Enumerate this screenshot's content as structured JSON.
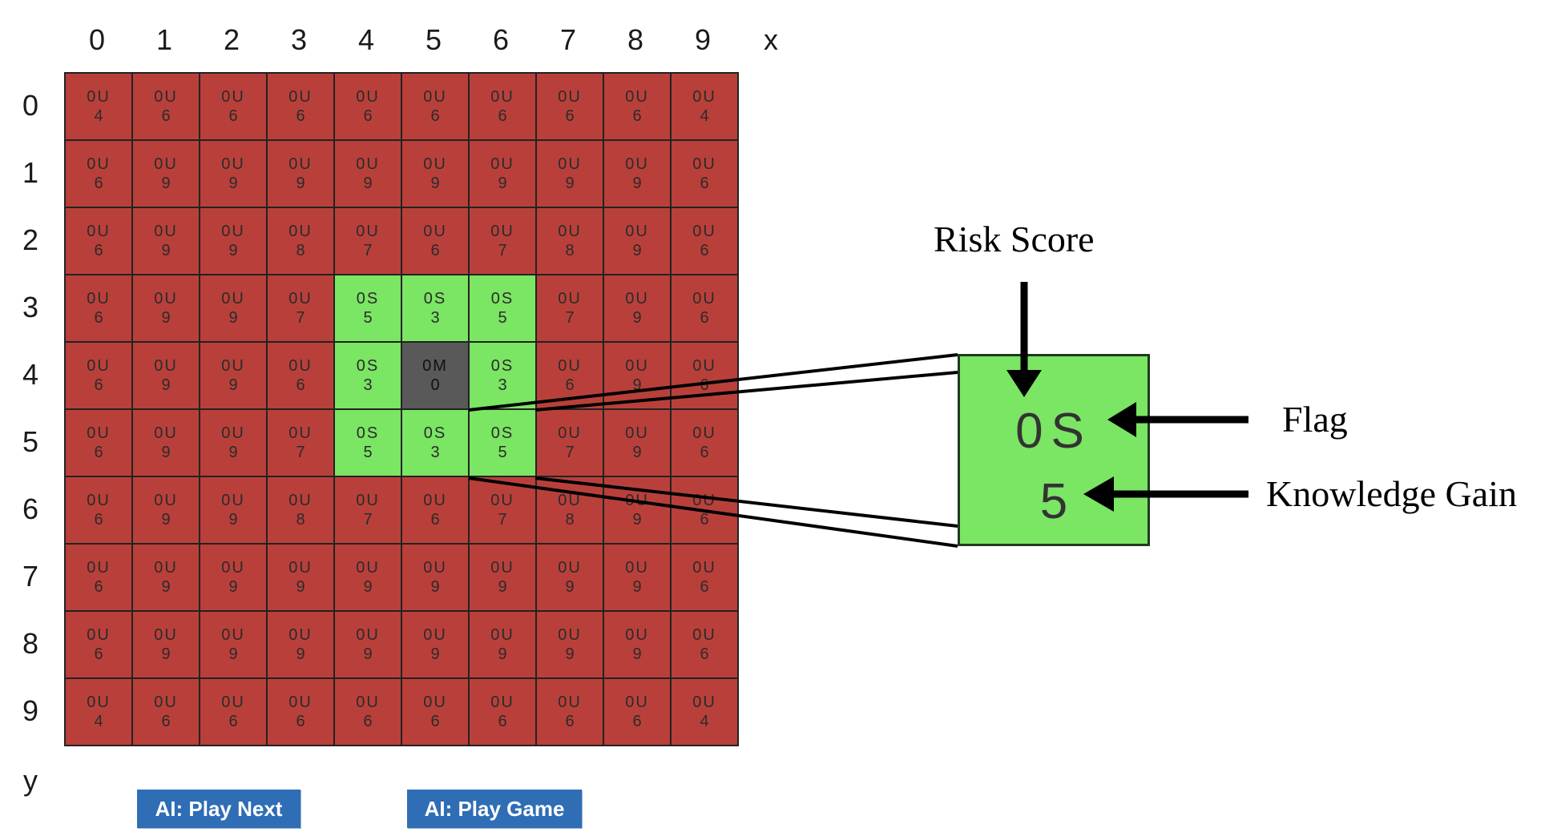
{
  "axes": {
    "x_ticks": [
      "0",
      "1",
      "2",
      "3",
      "4",
      "5",
      "6",
      "7",
      "8",
      "9"
    ],
    "y_ticks": [
      "0",
      "1",
      "2",
      "3",
      "4",
      "5",
      "6",
      "7",
      "8",
      "9"
    ],
    "x_label": "x",
    "y_label": "y"
  },
  "board": {
    "colors": {
      "unsafe": "#b9403a",
      "safe": "#7be564",
      "mine": "#595959"
    },
    "rows": [
      [
        [
          "0U",
          "4"
        ],
        [
          "0U",
          "6"
        ],
        [
          "0U",
          "6"
        ],
        [
          "0U",
          "6"
        ],
        [
          "0U",
          "6"
        ],
        [
          "0U",
          "6"
        ],
        [
          "0U",
          "6"
        ],
        [
          "0U",
          "6"
        ],
        [
          "0U",
          "6"
        ],
        [
          "0U",
          "4"
        ]
      ],
      [
        [
          "0U",
          "6"
        ],
        [
          "0U",
          "9"
        ],
        [
          "0U",
          "9"
        ],
        [
          "0U",
          "9"
        ],
        [
          "0U",
          "9"
        ],
        [
          "0U",
          "9"
        ],
        [
          "0U",
          "9"
        ],
        [
          "0U",
          "9"
        ],
        [
          "0U",
          "9"
        ],
        [
          "0U",
          "6"
        ]
      ],
      [
        [
          "0U",
          "6"
        ],
        [
          "0U",
          "9"
        ],
        [
          "0U",
          "9"
        ],
        [
          "0U",
          "8"
        ],
        [
          "0U",
          "7"
        ],
        [
          "0U",
          "6"
        ],
        [
          "0U",
          "7"
        ],
        [
          "0U",
          "8"
        ],
        [
          "0U",
          "9"
        ],
        [
          "0U",
          "6"
        ]
      ],
      [
        [
          "0U",
          "6"
        ],
        [
          "0U",
          "9"
        ],
        [
          "0U",
          "9"
        ],
        [
          "0U",
          "7"
        ],
        [
          "0S",
          "5"
        ],
        [
          "0S",
          "3"
        ],
        [
          "0S",
          "5"
        ],
        [
          "0U",
          "7"
        ],
        [
          "0U",
          "9"
        ],
        [
          "0U",
          "6"
        ]
      ],
      [
        [
          "0U",
          "6"
        ],
        [
          "0U",
          "9"
        ],
        [
          "0U",
          "9"
        ],
        [
          "0U",
          "6"
        ],
        [
          "0S",
          "3"
        ],
        [
          "0M",
          "0"
        ],
        [
          "0S",
          "3"
        ],
        [
          "0U",
          "6"
        ],
        [
          "0U",
          "9"
        ],
        [
          "0U",
          "6"
        ]
      ],
      [
        [
          "0U",
          "6"
        ],
        [
          "0U",
          "9"
        ],
        [
          "0U",
          "9"
        ],
        [
          "0U",
          "7"
        ],
        [
          "0S",
          "5"
        ],
        [
          "0S",
          "3"
        ],
        [
          "0S",
          "5"
        ],
        [
          "0U",
          "7"
        ],
        [
          "0U",
          "9"
        ],
        [
          "0U",
          "6"
        ]
      ],
      [
        [
          "0U",
          "6"
        ],
        [
          "0U",
          "9"
        ],
        [
          "0U",
          "9"
        ],
        [
          "0U",
          "8"
        ],
        [
          "0U",
          "7"
        ],
        [
          "0U",
          "6"
        ],
        [
          "0U",
          "7"
        ],
        [
          "0U",
          "8"
        ],
        [
          "0U",
          "9"
        ],
        [
          "0U",
          "6"
        ]
      ],
      [
        [
          "0U",
          "6"
        ],
        [
          "0U",
          "9"
        ],
        [
          "0U",
          "9"
        ],
        [
          "0U",
          "9"
        ],
        [
          "0U",
          "9"
        ],
        [
          "0U",
          "9"
        ],
        [
          "0U",
          "9"
        ],
        [
          "0U",
          "9"
        ],
        [
          "0U",
          "9"
        ],
        [
          "0U",
          "6"
        ]
      ],
      [
        [
          "0U",
          "6"
        ],
        [
          "0U",
          "9"
        ],
        [
          "0U",
          "9"
        ],
        [
          "0U",
          "9"
        ],
        [
          "0U",
          "9"
        ],
        [
          "0U",
          "9"
        ],
        [
          "0U",
          "9"
        ],
        [
          "0U",
          "9"
        ],
        [
          "0U",
          "9"
        ],
        [
          "0U",
          "6"
        ]
      ],
      [
        [
          "0U",
          "4"
        ],
        [
          "0U",
          "6"
        ],
        [
          "0U",
          "6"
        ],
        [
          "0U",
          "6"
        ],
        [
          "0U",
          "6"
        ],
        [
          "0U",
          "6"
        ],
        [
          "0U",
          "6"
        ],
        [
          "0U",
          "6"
        ],
        [
          "0U",
          "6"
        ],
        [
          "0U",
          "4"
        ]
      ]
    ]
  },
  "buttons": {
    "play_next": "AI: Play Next",
    "play_game": "AI: Play Game"
  },
  "zoom": {
    "line1": "0S",
    "line2": "5"
  },
  "annotations": {
    "risk_score": "Risk Score",
    "flag": "Flag",
    "knowledge_gain": "Knowledge  Gain"
  }
}
